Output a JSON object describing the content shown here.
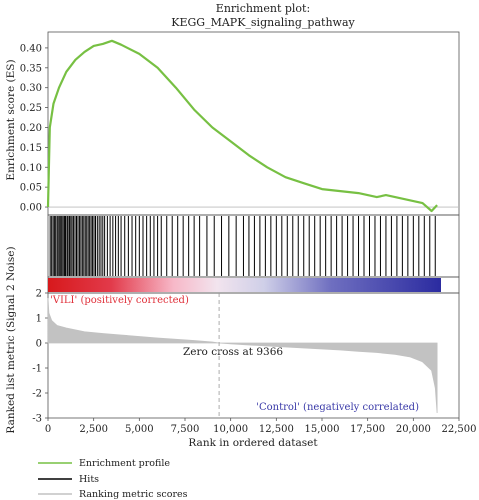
{
  "chart_data": {
    "type": "line",
    "title": "Enrichment plot:",
    "subtitle": "KEGG_MAPK_signaling_pathway",
    "xlabel": "Rank in ordered dataset",
    "ylabel_top": "Enrichment score (ES)",
    "ylabel_bottom": "Ranked list metric (Signal 2 Noise)",
    "xlim": [
      0,
      22500
    ],
    "x_ticks": [
      "0",
      "2,500",
      "5,000",
      "7,500",
      "10,000",
      "12,500",
      "15,000",
      "17,500",
      "20,000",
      "22,500"
    ],
    "x_tick_values": [
      0,
      2500,
      5000,
      7500,
      10000,
      12500,
      15000,
      17500,
      20000,
      22500
    ],
    "es_ylim": [
      -0.02,
      0.44
    ],
    "es_ticks": [
      "0.40",
      "0.35",
      "0.30",
      "0.25",
      "0.20",
      "0.15",
      "0.10",
      "0.05",
      "0.00"
    ],
    "es_tick_values": [
      0.4,
      0.35,
      0.3,
      0.25,
      0.2,
      0.15,
      0.1,
      0.05,
      0.0
    ],
    "metric_ylim": [
      -3,
      2
    ],
    "metric_ticks": [
      "2",
      "1",
      "0",
      "-1",
      "-2",
      "-3"
    ],
    "metric_tick_values": [
      2,
      1,
      0,
      -1,
      -2,
      -3
    ],
    "series": [
      {
        "name": "Enrichment profile",
        "color": "#77c043",
        "x": [
          0,
          100,
          300,
          600,
          1000,
          1500,
          2000,
          2500,
          3000,
          3500,
          4000,
          5000,
          6000,
          7000,
          8000,
          9000,
          10000,
          11000,
          12000,
          13000,
          14000,
          15000,
          16000,
          17000,
          18000,
          18500,
          19000,
          19500,
          20000,
          20500,
          21000,
          21300
        ],
        "y": [
          0.0,
          0.2,
          0.26,
          0.3,
          0.34,
          0.37,
          0.39,
          0.405,
          0.41,
          0.418,
          0.408,
          0.385,
          0.35,
          0.3,
          0.245,
          0.2,
          0.165,
          0.13,
          0.1,
          0.075,
          0.06,
          0.045,
          0.04,
          0.035,
          0.025,
          0.03,
          0.025,
          0.02,
          0.015,
          0.01,
          -0.01,
          0.005
        ]
      },
      {
        "name": "Ranking metric scores",
        "color": "#c2c2c2",
        "x": [
          0,
          50,
          200,
          500,
          1000,
          2000,
          3000,
          4000,
          5000,
          6000,
          7000,
          8000,
          9000,
          9366,
          10000,
          11000,
          12000,
          13000,
          14000,
          15000,
          16000,
          17000,
          18000,
          19000,
          19800,
          20500,
          21000,
          21200,
          21300
        ],
        "y": [
          1.8,
          1.2,
          0.9,
          0.7,
          0.6,
          0.45,
          0.38,
          0.32,
          0.26,
          0.2,
          0.15,
          0.1,
          0.04,
          0.0,
          -0.03,
          -0.08,
          -0.12,
          -0.16,
          -0.2,
          -0.24,
          -0.28,
          -0.33,
          -0.38,
          -0.45,
          -0.55,
          -0.75,
          -1.1,
          -1.8,
          -2.8
        ]
      }
    ],
    "hits_name": "Hits",
    "hits_color": "#000000",
    "hits": [
      120,
      200,
      280,
      350,
      420,
      500,
      560,
      640,
      700,
      760,
      830,
      900,
      960,
      1040,
      1100,
      1180,
      1250,
      1320,
      1400,
      1480,
      1560,
      1640,
      1720,
      1800,
      1880,
      1960,
      2040,
      2120,
      2200,
      2280,
      2360,
      2440,
      2520,
      2600,
      2700,
      2800,
      2900,
      3000,
      3100,
      3250,
      3400,
      3550,
      3700,
      3850,
      4000,
      4200,
      4400,
      4600,
      4800,
      5000,
      5200,
      5400,
      5600,
      5800,
      6000,
      6200,
      6500,
      6800,
      7100,
      7400,
      7700,
      8000,
      8300,
      8700,
      9100,
      9500,
      9900,
      10300,
      10700,
      11000,
      11300,
      11600,
      11900,
      12200,
      12500,
      12800,
      13100,
      13400,
      13700,
      14000,
      14300,
      14600,
      14900,
      15200,
      15500,
      15800,
      16100,
      16400,
      16700,
      17000,
      17300,
      17600,
      17900,
      18200,
      18500,
      18800,
      19100,
      19400,
      19700,
      20000,
      20300,
      20600,
      20900,
      21200
    ],
    "pos_label": "'VILI' (positively corrected)",
    "neg_label": "'Control' (negatively correlated)",
    "zero_cross_label": "Zero cross at 9366",
    "zero_cross_value": 9366,
    "legend_placement": "bottom-left",
    "grid": false
  }
}
